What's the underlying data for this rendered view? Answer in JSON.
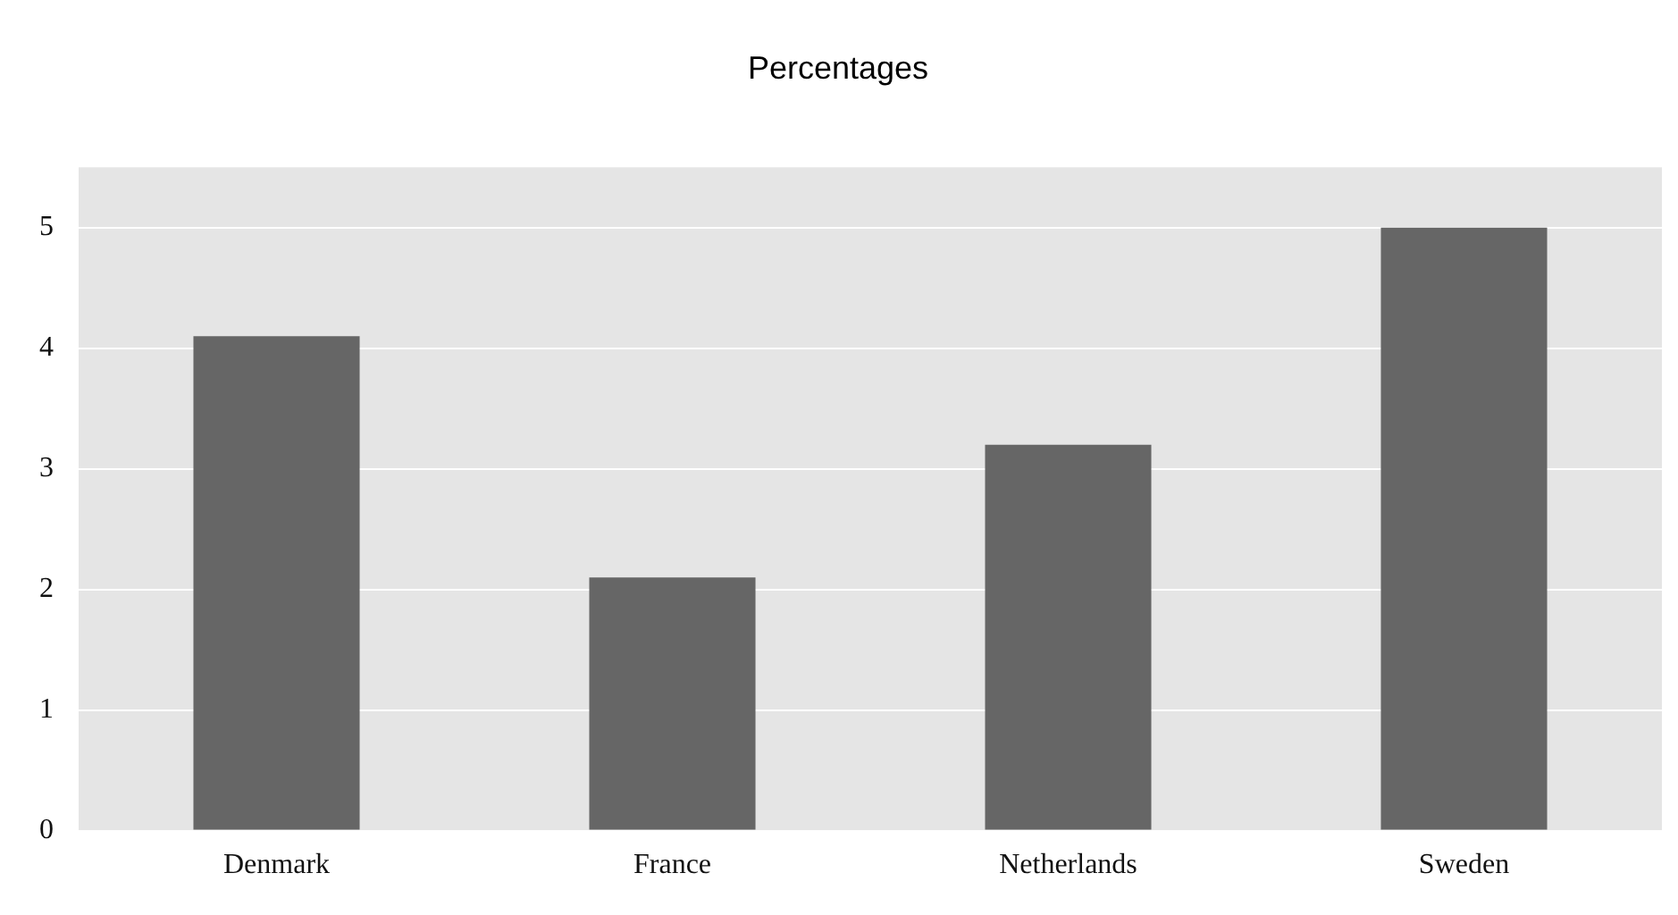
{
  "chart_data": {
    "type": "bar",
    "title": "Percentages",
    "categories": [
      "Denmark",
      "France",
      "Netherlands",
      "Sweden"
    ],
    "values": [
      4.1,
      2.1,
      3.2,
      5.0
    ],
    "color": "#666666",
    "ylim": [
      0,
      5.5
    ],
    "yticks": [
      0,
      1,
      2,
      3,
      4,
      5
    ],
    "grid": "y",
    "legend": false
  }
}
